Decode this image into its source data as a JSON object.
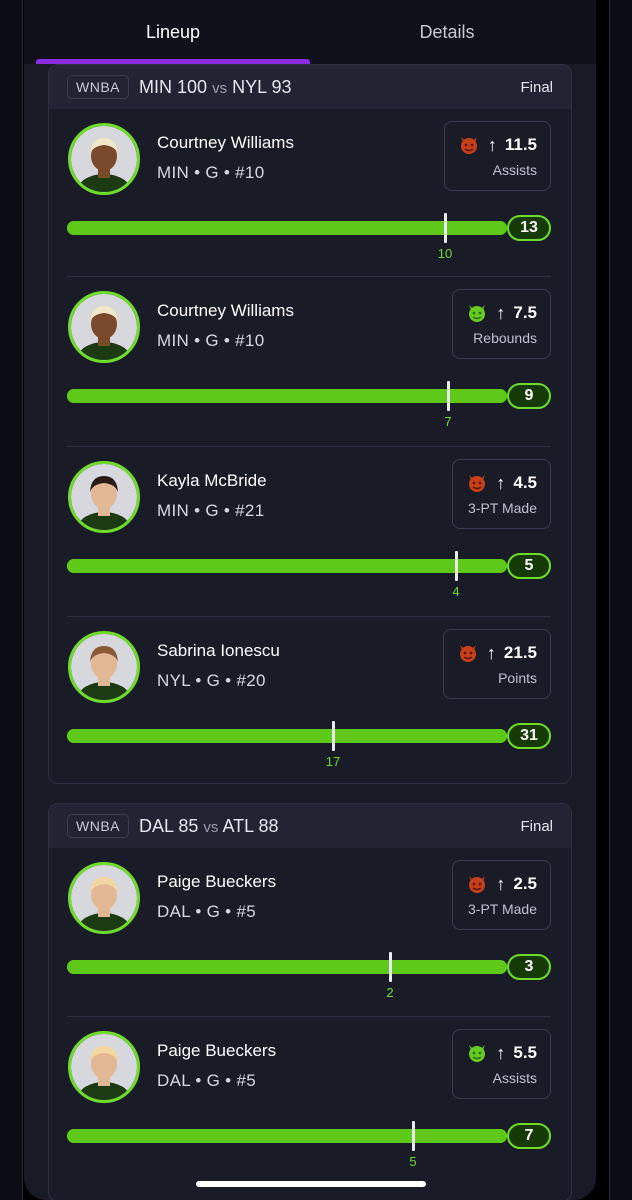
{
  "tabs": {
    "lineup": "Lineup",
    "details": "Details"
  },
  "games": [
    {
      "league": "WNBA",
      "team_a": "MIN",
      "score_a": "100",
      "vs": "vs",
      "team_b": "NYL",
      "score_b": "93",
      "status": "Final",
      "players": [
        {
          "name": "Courtney Williams",
          "meta": "MIN • G • #10",
          "emoji": "devil-red",
          "line": "11.5",
          "stat": "Assists",
          "actual": "13",
          "marker_label": "10"
        },
        {
          "name": "Courtney Williams",
          "meta": "MIN • G • #10",
          "emoji": "devil-green",
          "line": "7.5",
          "stat": "Rebounds",
          "actual": "9",
          "marker_label": "7"
        },
        {
          "name": "Kayla McBride",
          "meta": "MIN • G • #21",
          "emoji": "devil-red",
          "line": "4.5",
          "stat": "3-PT Made",
          "actual": "5",
          "marker_label": "4"
        },
        {
          "name": "Sabrina Ionescu",
          "meta": "NYL • G • #20",
          "emoji": "devil-red",
          "line": "21.5",
          "stat": "Points",
          "actual": "31",
          "marker_label": "17"
        }
      ]
    },
    {
      "league": "WNBA",
      "team_a": "DAL",
      "score_a": "85",
      "vs": "vs",
      "team_b": "ATL",
      "score_b": "88",
      "status": "Final",
      "players": [
        {
          "name": "Paige Bueckers",
          "meta": "DAL • G • #5",
          "emoji": "devil-red",
          "line": "2.5",
          "stat": "3-PT Made",
          "actual": "3",
          "marker_label": "2"
        },
        {
          "name": "Paige Bueckers",
          "meta": "DAL • G • #5",
          "emoji": "devil-green",
          "line": "5.5",
          "stat": "Assists",
          "actual": "7",
          "marker_label": "5"
        }
      ]
    }
  ],
  "icons": {
    "arrow": "up-arrow-icon",
    "avatar": "player-headshot"
  },
  "colors": {
    "accent_green": "#6fdc2a",
    "tab_accent": "#8a2be2"
  }
}
